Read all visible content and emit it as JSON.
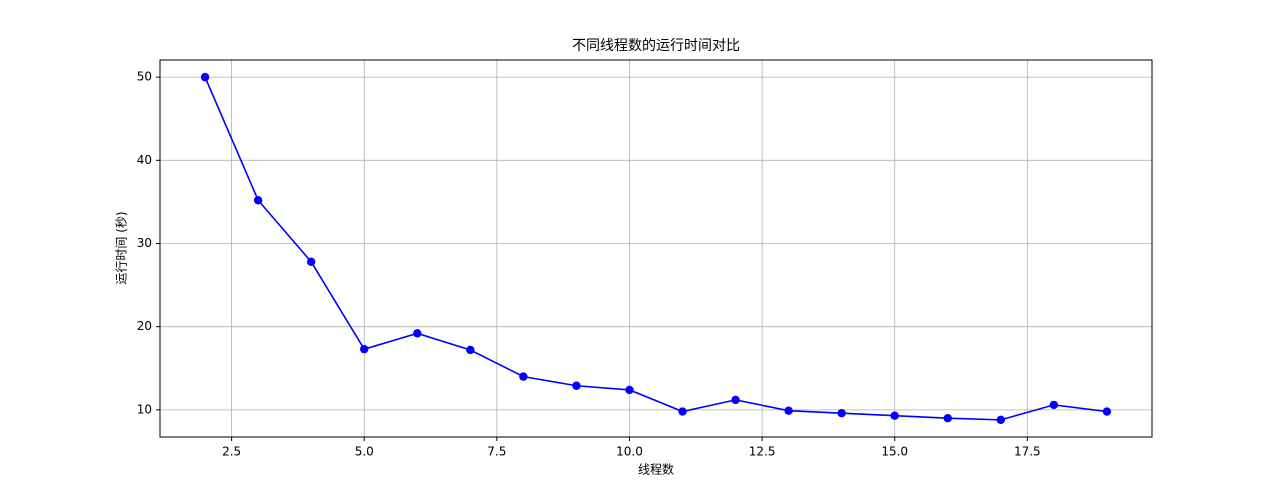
{
  "chart_data": {
    "type": "line",
    "title": "不同线程数的运行时间对比",
    "x_label": "线程数",
    "y_label": "运行时间 (秒)",
    "x": [
      2,
      3,
      4,
      5,
      6,
      7,
      8,
      9,
      10,
      11,
      12,
      13,
      14,
      15,
      16,
      17,
      18,
      19
    ],
    "series": [
      {
        "name": "运行时间",
        "color": "#0000ff",
        "values": [
          50,
          35.2,
          27.8,
          17.3,
          19.2,
          17.2,
          14.0,
          12.9,
          12.4,
          9.8,
          11.2,
          9.9,
          9.6,
          9.3,
          9.0,
          8.8,
          10.6,
          9.8
        ]
      }
    ],
    "xlim": [
      1.15,
      19.85
    ],
    "ylim": [
      6.74,
      52.06
    ],
    "xticks": [
      2.5,
      {
        "value": 5,
        "label": "5.0"
      },
      7.5,
      {
        "value": 10,
        "label": "10.0"
      },
      12.5,
      {
        "value": 15,
        "label": "15.0"
      },
      17.5
    ],
    "yticks": [
      10,
      20,
      30,
      40,
      50
    ],
    "grid": true
  }
}
